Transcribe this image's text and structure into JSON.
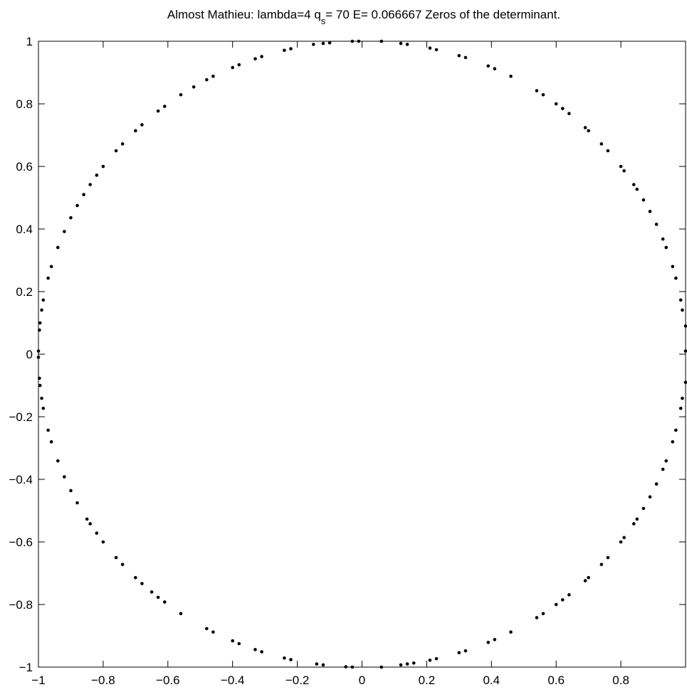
{
  "chart_data": {
    "type": "scatter",
    "title": {
      "prefix": "Almost Mathieu: lambda=4 q",
      "subscript": "s",
      "suffix": "= 70 E= 0.066667 Zeros of the determinant."
    },
    "xlabel": "",
    "ylabel": "",
    "xlim": [
      -1,
      1
    ],
    "ylim": [
      -1,
      1
    ],
    "xticks": [
      -1,
      -0.8,
      -0.6,
      -0.4,
      -0.2,
      0,
      0.2,
      0.4,
      0.6,
      0.8
    ],
    "xtick_labels": [
      "−1",
      "−0.8",
      "−0.6",
      "−0.4",
      "−0.2",
      "0",
      "0.2",
      "0.4",
      "0.6",
      "0.8"
    ],
    "yticks": [
      -1,
      -0.8,
      -0.6,
      -0.4,
      -0.2,
      0,
      0.2,
      0.4,
      0.6,
      0.8,
      1
    ],
    "ytick_labels": [
      "−1",
      "−0.8",
      "−0.6",
      "−0.4",
      "−0.2",
      "0",
      "0.2",
      "0.4",
      "0.6",
      "0.8",
      "1"
    ],
    "grid": false,
    "marker_color": "#000000",
    "points": [
      [
        0.06,
        1.0
      ],
      [
        -0.03,
        1.0
      ],
      [
        -0.01,
        1.0
      ],
      [
        0.12,
        0.993
      ],
      [
        0.14,
        0.99
      ],
      [
        -0.1,
        0.995
      ],
      [
        -0.12,
        0.993
      ],
      [
        -0.15,
        0.99
      ],
      [
        0.21,
        0.978
      ],
      [
        0.23,
        0.973
      ],
      [
        -0.22,
        0.976
      ],
      [
        -0.24,
        0.971
      ],
      [
        0.3,
        0.954
      ],
      [
        0.32,
        0.948
      ],
      [
        -0.31,
        0.951
      ],
      [
        -0.33,
        0.944
      ],
      [
        0.39,
        0.921
      ],
      [
        0.41,
        0.912
      ],
      [
        0.46,
        0.888
      ],
      [
        -0.38,
        0.925
      ],
      [
        -0.4,
        0.916
      ],
      [
        -0.46,
        0.888
      ],
      [
        -0.48,
        0.877
      ],
      [
        0.54,
        0.842
      ],
      [
        0.56,
        0.829
      ],
      [
        -0.52,
        0.854
      ],
      [
        -0.56,
        0.829
      ],
      [
        0.6,
        0.8
      ],
      [
        0.62,
        0.785
      ],
      [
        0.64,
        0.769
      ],
      [
        -0.61,
        0.792
      ],
      [
        -0.63,
        0.777
      ],
      [
        0.69,
        0.724
      ],
      [
        0.7,
        0.714
      ],
      [
        -0.68,
        0.733
      ],
      [
        -0.7,
        0.714
      ],
      [
        0.74,
        0.672
      ],
      [
        0.76,
        0.65
      ],
      [
        -0.74,
        0.672
      ],
      [
        -0.76,
        0.65
      ],
      [
        0.8,
        0.6
      ],
      [
        0.81,
        0.586
      ],
      [
        -0.8,
        0.6
      ],
      [
        -0.82,
        0.572
      ],
      [
        0.84,
        0.542
      ],
      [
        0.85,
        0.527
      ],
      [
        -0.84,
        0.542
      ],
      [
        -0.86,
        0.51
      ],
      [
        0.87,
        0.493
      ],
      [
        0.89,
        0.456
      ],
      [
        -0.88,
        0.475
      ],
      [
        -0.9,
        0.436
      ],
      [
        0.91,
        0.415
      ],
      [
        0.93,
        0.368
      ],
      [
        0.94,
        0.341
      ],
      [
        -0.92,
        0.392
      ],
      [
        -0.94,
        0.341
      ],
      [
        0.96,
        0.28
      ],
      [
        0.97,
        0.243
      ],
      [
        -0.96,
        0.28
      ],
      [
        -0.97,
        0.243
      ],
      [
        0.985,
        0.173
      ],
      [
        0.99,
        0.141
      ],
      [
        -0.985,
        0.173
      ],
      [
        -0.99,
        0.141
      ],
      [
        1.0,
        0.09
      ],
      [
        -0.995,
        0.1
      ],
      [
        -0.997,
        0.077
      ],
      [
        1.0,
        0.01
      ],
      [
        -1.0,
        0.01
      ],
      [
        -1.0,
        -0.01
      ],
      [
        0.06,
        -1.0
      ],
      [
        -0.03,
        -1.0
      ],
      [
        -0.05,
        -0.999
      ],
      [
        0.12,
        -0.993
      ],
      [
        0.14,
        -0.99
      ],
      [
        0.16,
        -0.987
      ],
      [
        -0.12,
        -0.993
      ],
      [
        -0.14,
        -0.99
      ],
      [
        0.21,
        -0.978
      ],
      [
        0.23,
        -0.973
      ],
      [
        -0.22,
        -0.976
      ],
      [
        -0.24,
        -0.971
      ],
      [
        0.3,
        -0.954
      ],
      [
        0.32,
        -0.948
      ],
      [
        -0.31,
        -0.951
      ],
      [
        -0.33,
        -0.944
      ],
      [
        0.39,
        -0.921
      ],
      [
        0.41,
        -0.912
      ],
      [
        0.46,
        -0.888
      ],
      [
        -0.38,
        -0.925
      ],
      [
        -0.4,
        -0.916
      ],
      [
        -0.46,
        -0.888
      ],
      [
        -0.48,
        -0.877
      ],
      [
        0.54,
        -0.842
      ],
      [
        0.56,
        -0.829
      ],
      [
        -0.56,
        -0.829
      ],
      [
        0.6,
        -0.8
      ],
      [
        0.62,
        -0.785
      ],
      [
        0.64,
        -0.769
      ],
      [
        -0.61,
        -0.792
      ],
      [
        -0.63,
        -0.777
      ],
      [
        -0.65,
        -0.76
      ],
      [
        0.69,
        -0.724
      ],
      [
        0.7,
        -0.714
      ],
      [
        -0.68,
        -0.733
      ],
      [
        -0.7,
        -0.714
      ],
      [
        0.74,
        -0.672
      ],
      [
        0.76,
        -0.65
      ],
      [
        -0.74,
        -0.672
      ],
      [
        -0.76,
        -0.65
      ],
      [
        0.8,
        -0.6
      ],
      [
        0.81,
        -0.586
      ],
      [
        -0.8,
        -0.6
      ],
      [
        -0.82,
        -0.572
      ],
      [
        0.84,
        -0.542
      ],
      [
        0.85,
        -0.527
      ],
      [
        -0.84,
        -0.542
      ],
      [
        -0.85,
        -0.527
      ],
      [
        0.87,
        -0.493
      ],
      [
        0.89,
        -0.456
      ],
      [
        -0.88,
        -0.475
      ],
      [
        -0.9,
        -0.436
      ],
      [
        0.91,
        -0.415
      ],
      [
        0.93,
        -0.368
      ],
      [
        0.94,
        -0.341
      ],
      [
        -0.92,
        -0.392
      ],
      [
        -0.94,
        -0.341
      ],
      [
        0.96,
        -0.28
      ],
      [
        0.97,
        -0.243
      ],
      [
        -0.96,
        -0.28
      ],
      [
        -0.97,
        -0.243
      ],
      [
        0.985,
        -0.173
      ],
      [
        0.99,
        -0.141
      ],
      [
        -0.985,
        -0.173
      ],
      [
        -0.99,
        -0.141
      ],
      [
        1.0,
        -0.09
      ],
      [
        -0.995,
        -0.1
      ],
      [
        -0.997,
        -0.077
      ]
    ]
  }
}
